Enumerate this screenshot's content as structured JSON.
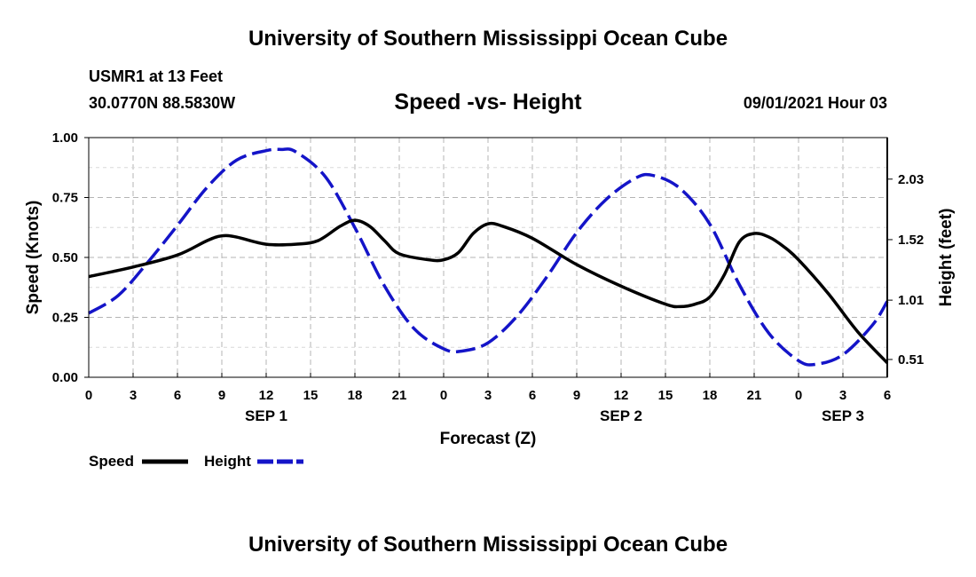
{
  "header": {
    "title": "University of Southern Mississippi Ocean Cube",
    "station": "USMR1 at 13 Feet",
    "coords": "30.0770N  88.5830W",
    "plot_title": "Speed -vs- Height",
    "datetime": "09/01/2021 Hour 03"
  },
  "footer": {
    "title": "University of Southern Mississippi Ocean Cube"
  },
  "legend": {
    "speed_label": "Speed",
    "height_label": "Height"
  },
  "colors": {
    "speed": "#000000",
    "height": "#1414c8",
    "grid": "#b4b4b4"
  },
  "chart_data": {
    "type": "line",
    "title": "Speed -vs- Height",
    "xlabel": "Forecast (Z)",
    "ylabel": "Speed (Knots)",
    "y2label": "Height (feet)",
    "x_hours_range": [
      0,
      54
    ],
    "x_tick_labels": [
      "0",
      "3",
      "6",
      "9",
      "12",
      "15",
      "18",
      "21",
      "0",
      "3",
      "6",
      "9",
      "12",
      "15",
      "18",
      "21",
      "0",
      "3",
      "6"
    ],
    "date_labels": [
      {
        "label": "SEP 1",
        "hour": 12
      },
      {
        "label": "SEP 2",
        "hour": 36
      },
      {
        "label": "SEP 3",
        "hour": 51
      }
    ],
    "ylim": [
      0,
      1.0
    ],
    "y_ticks": [
      "0.00",
      "0.25",
      "0.50",
      "0.75",
      "1.00"
    ],
    "y_tick_values": [
      0,
      0.25,
      0.5,
      0.75,
      1.0
    ],
    "y2_ticks": [
      "0.51",
      "1.01",
      "1.52",
      "2.03"
    ],
    "y2_tick_values": [
      0.51,
      1.01,
      1.52,
      2.03
    ],
    "y2lim": [
      0.36,
      2.38
    ],
    "grid": true,
    "series": [
      {
        "name": "Speed",
        "axis": "left",
        "style": "solid",
        "x": [
          0,
          3,
          6,
          8,
          9,
          10,
          12,
          14,
          15.5,
          17,
          18,
          19,
          20,
          21,
          23,
          24,
          25,
          26,
          27,
          28,
          30,
          33,
          36,
          39,
          40,
          41,
          42,
          43,
          44,
          45,
          46,
          47,
          48,
          50,
          52,
          54
        ],
        "values": [
          0.42,
          0.46,
          0.51,
          0.57,
          0.59,
          0.585,
          0.555,
          0.555,
          0.57,
          0.63,
          0.655,
          0.63,
          0.57,
          0.515,
          0.49,
          0.49,
          0.52,
          0.6,
          0.64,
          0.63,
          0.58,
          0.47,
          0.38,
          0.305,
          0.295,
          0.305,
          0.335,
          0.43,
          0.565,
          0.6,
          0.585,
          0.545,
          0.49,
          0.35,
          0.19,
          0.06
        ]
      },
      {
        "name": "Height",
        "axis": "right",
        "style": "dashed",
        "x": [
          0,
          2,
          4,
          6,
          8,
          10,
          12,
          13,
          14,
          16,
          18,
          20,
          22,
          24,
          25.2,
          27,
          29,
          31,
          33,
          35,
          37,
          38.2,
          40,
          42,
          44,
          46,
          48,
          49.2,
          51,
          53,
          54
        ],
        "values": [
          0.9,
          1.05,
          1.33,
          1.64,
          1.96,
          2.19,
          2.27,
          2.28,
          2.26,
          2.05,
          1.62,
          1.13,
          0.77,
          0.6,
          0.58,
          0.65,
          0.88,
          1.21,
          1.58,
          1.86,
          2.04,
          2.06,
          1.95,
          1.65,
          1.14,
          0.73,
          0.5,
          0.47,
          0.55,
          0.8,
          1.0
        ]
      }
    ]
  }
}
